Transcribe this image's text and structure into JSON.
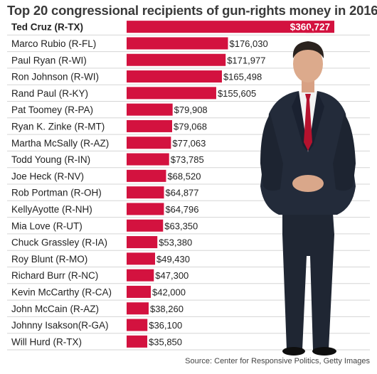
{
  "title": "Top 20 congressional recipients of gun-rights money in 2016",
  "source": "Source: Center for Responsive Politics, Getty Images",
  "colors": {
    "bar": "#d3123f",
    "divider": "#d5d5d5",
    "label": "#222222",
    "value": "#222222",
    "highlight_text": "#ffffff"
  },
  "photo": {
    "description_icon": "photo-of-ted-cruz"
  },
  "chart_data": {
    "type": "bar",
    "orientation": "horizontal",
    "title": "Top 20 congressional recipients of gun-rights money in 2016",
    "categories": [
      "Ted Cruz (R-TX)",
      "Marco Rubio (R-FL)",
      "Paul Ryan (R-WI)",
      "Ron Johnson (R-WI)",
      "Rand Paul (R-KY)",
      "Pat Toomey (R-PA)",
      "Ryan K. Zinke (R-MT)",
      "Martha McSally (R-AZ)",
      "Todd Young (R-IN)",
      "Joe Heck (R-NV)",
      "Rob Portman (R-OH)",
      "KellyAyotte (R-NH)",
      "Mia Love (R-UT)",
      "Chuck Grassley (R-IA)",
      "Roy Blunt (R-MO)",
      "Richard Burr (R-NC)",
      "Kevin McCarthy (R-CA)",
      "John McCain (R-AZ)",
      "Johnny  Isakson(R-GA)",
      "Will Hurd (R-TX)"
    ],
    "values": [
      360727,
      176030,
      171977,
      165498,
      155605,
      79908,
      79068,
      77063,
      73785,
      68520,
      64877,
      64796,
      63350,
      53380,
      49430,
      47300,
      42000,
      38260,
      36100,
      35850
    ],
    "value_labels": [
      "$360,727",
      "$176,030",
      "$171,977",
      "$165,498",
      "$155,605",
      "$79,908",
      "$79,068",
      "$77,063",
      "$73,785",
      "$68,520",
      "$64,877",
      "$64,796",
      "$63,350",
      "$53,380",
      "$49,430",
      "$47,300",
      "$42,000",
      "$38,260",
      "$36,100",
      "$35,850"
    ],
    "highlight_index": 0,
    "xlim": [
      0,
      360727
    ],
    "grid": false,
    "legend": "none"
  }
}
